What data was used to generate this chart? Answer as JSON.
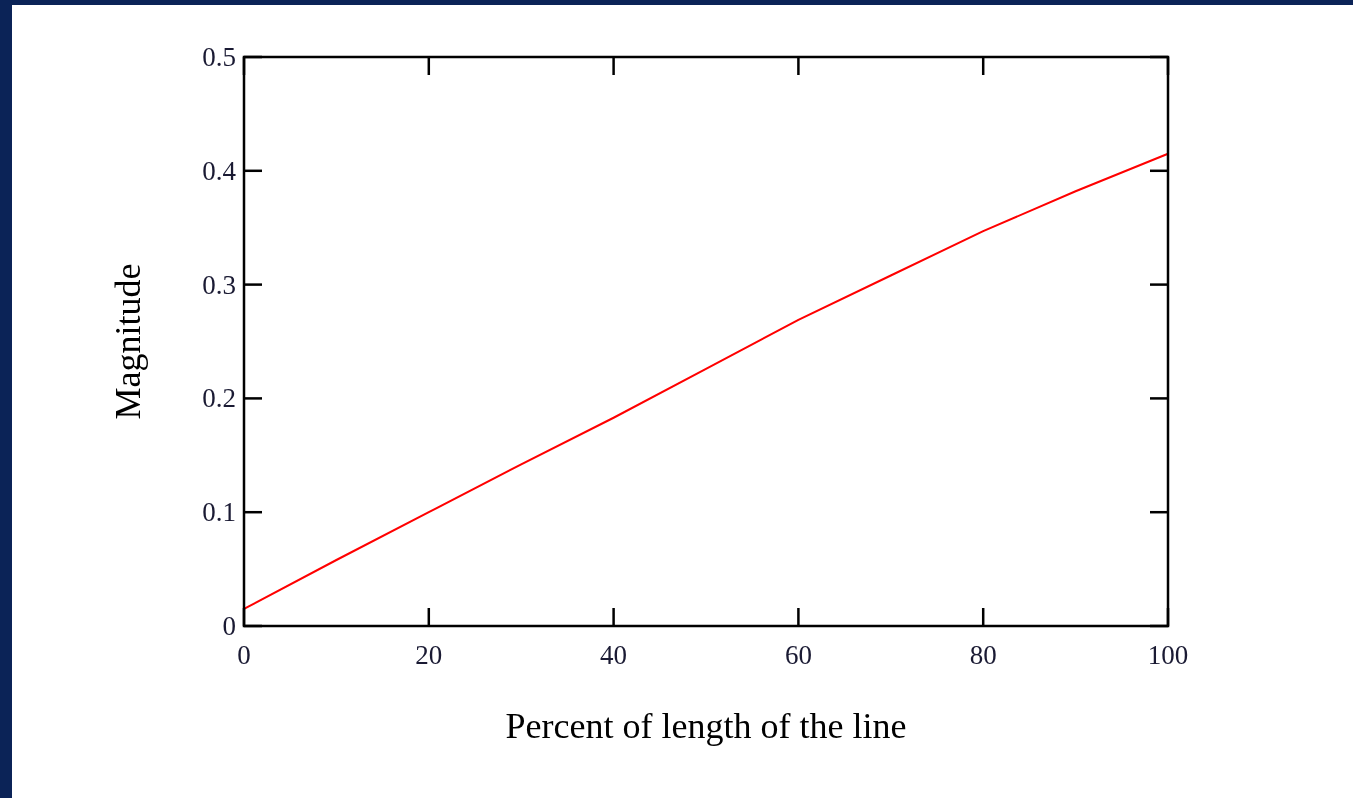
{
  "chart_data": {
    "type": "line",
    "xlabel": "Percent of length of the line",
    "ylabel": "Magnitude",
    "x": [
      0,
      10,
      20,
      30,
      40,
      50,
      60,
      70,
      80,
      90,
      100
    ],
    "series": [
      {
        "color": "#ff0000",
        "values": [
          0.015,
          0.058,
          0.1,
          0.142,
          0.183,
          0.226,
          0.269,
          0.308,
          0.347,
          0.382,
          0.415
        ]
      }
    ],
    "xlim": [
      0,
      100
    ],
    "xticks": [
      0,
      20,
      40,
      60,
      80,
      100
    ],
    "ylim": [
      0,
      0.5
    ],
    "yticks": [
      0,
      0.1,
      0.2,
      0.3,
      0.4,
      0.5
    ],
    "marker": "none",
    "line_style": "solid"
  }
}
